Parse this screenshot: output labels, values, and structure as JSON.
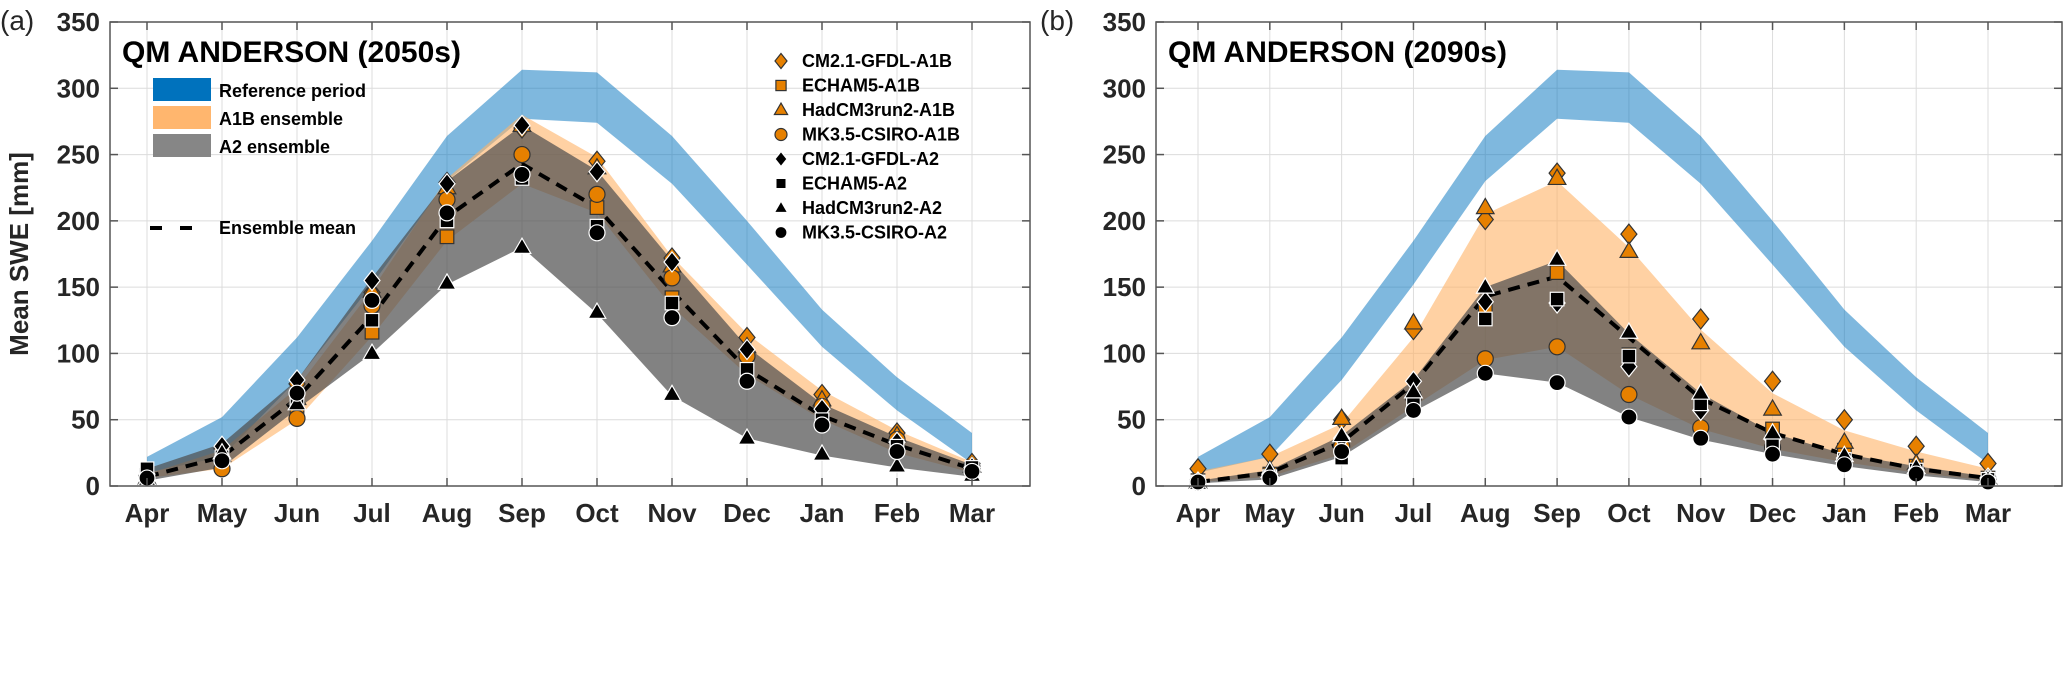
{
  "chart_data": [
    {
      "type": "area",
      "panel_label": "(a)",
      "title": "QM ANDERSON (2050s)",
      "xlabel": "",
      "ylabel": "Mean SWE [mm]",
      "ylim": [
        0,
        350
      ],
      "yticks": [
        0,
        50,
        100,
        150,
        200,
        250,
        300,
        350
      ],
      "categories": [
        "Apr",
        "May",
        "Jun",
        "Jul",
        "Aug",
        "Sep",
        "Oct",
        "Nov",
        "Dec",
        "Jan",
        "Feb",
        "Mar"
      ],
      "grid": true,
      "legend_fill_placement": "top-left",
      "legend_marker_placement": "top-right",
      "bands": [
        {
          "name": "Reference period",
          "color": "#0072BD",
          "lower": [
            10,
            22,
            80,
            152,
            230,
            277,
            274,
            228,
            167,
            105,
            57,
            17
          ],
          "upper": [
            22,
            52,
            112,
            185,
            264,
            314,
            312,
            264,
            200,
            133,
            82,
            40
          ]
        },
        {
          "name": "A1B ensemble",
          "color": "#FFB266",
          "lower": [
            6,
            13,
            50,
            113,
            185,
            228,
            206,
            135,
            84,
            50,
            25,
            10
          ],
          "upper": [
            9,
            27,
            74,
            148,
            232,
            280,
            248,
            173,
            115,
            72,
            42,
            18
          ]
        },
        {
          "name": "A2 ensemble",
          "color": "#808080",
          "lower": [
            4,
            14,
            58,
            100,
            152,
            180,
            130,
            68,
            36,
            23,
            14,
            7
          ],
          "upper": [
            13,
            32,
            80,
            157,
            230,
            272,
            238,
            170,
            105,
            62,
            37,
            16
          ]
        }
      ],
      "ensemble_mean": {
        "name": "Ensemble mean",
        "values": [
          7,
          22,
          66,
          128,
          203,
          243,
          210,
          147,
          88,
          53,
          31,
          13
        ]
      },
      "series": [
        {
          "name": "CM2.1-GFDL-A1B",
          "marker": "diamond",
          "color": "#E68000",
          "values": [
            8,
            28,
            77,
            146,
            229,
            270,
            245,
            172,
            112,
            69,
            40,
            17
          ]
        },
        {
          "name": "ECHAM5-A1B",
          "marker": "square",
          "color": "#E68000",
          "values": [
            8,
            20,
            60,
            116,
            188,
            232,
            210,
            142,
            85,
            56,
            32,
            13
          ]
        },
        {
          "name": "HadCM3run2-A1B",
          "marker": "triangle",
          "color": "#E68000",
          "values": [
            6,
            23,
            66,
            147,
            225,
            272,
            240,
            166,
            105,
            65,
            38,
            15
          ]
        },
        {
          "name": "MK3.5-CSIRO-A1B",
          "marker": "circle",
          "color": "#E68000",
          "values": [
            7,
            13,
            51,
            136,
            216,
            250,
            220,
            157,
            98,
            60,
            35,
            14
          ]
        },
        {
          "name": "CM2.1-GFDL-A2",
          "marker": "diamond",
          "color": "#000000",
          "values": [
            9,
            30,
            80,
            155,
            228,
            272,
            237,
            169,
            103,
            58,
            33,
            14
          ]
        },
        {
          "name": "ECHAM5-A2",
          "marker": "square",
          "color": "#000000",
          "values": [
            13,
            22,
            65,
            125,
            200,
            232,
            196,
            138,
            88,
            50,
            30,
            14
          ]
        },
        {
          "name": "HadCM3run2-A2",
          "marker": "triangle",
          "color": "#000000",
          "values": [
            5,
            25,
            62,
            100,
            153,
            180,
            131,
            69,
            36,
            24,
            15,
            8
          ]
        },
        {
          "name": "MK3.5-CSIRO-A2",
          "marker": "circle",
          "color": "#000000",
          "values": [
            6,
            19,
            70,
            140,
            206,
            235,
            191,
            127,
            79,
            46,
            26,
            11
          ]
        }
      ]
    },
    {
      "type": "area",
      "panel_label": "(b)",
      "title": "QM ANDERSON (2090s)",
      "xlabel": "",
      "ylabel": "",
      "ylim": [
        0,
        350
      ],
      "yticks": [
        0,
        50,
        100,
        150,
        200,
        250,
        300,
        350
      ],
      "categories": [
        "Apr",
        "May",
        "Jun",
        "Jul",
        "Aug",
        "Sep",
        "Oct",
        "Nov",
        "Dec",
        "Jan",
        "Feb",
        "Mar"
      ],
      "grid": true,
      "bands": [
        {
          "name": "Reference period",
          "color": "#0072BD",
          "lower": [
            10,
            22,
            80,
            152,
            230,
            277,
            274,
            228,
            167,
            105,
            57,
            17
          ],
          "upper": [
            22,
            52,
            112,
            185,
            264,
            314,
            312,
            264,
            200,
            133,
            82,
            40
          ]
        },
        {
          "name": "A1B ensemble",
          "color": "#FFB266",
          "lower": [
            3,
            7,
            24,
            60,
            95,
            105,
            69,
            43,
            28,
            18,
            10,
            4
          ],
          "upper": [
            11,
            22,
            47,
            112,
            205,
            230,
            180,
            118,
            70,
            42,
            26,
            13
          ]
        },
        {
          "name": "A2 ensemble",
          "color": "#808080",
          "lower": [
            2,
            5,
            22,
            56,
            85,
            78,
            52,
            35,
            24,
            15,
            8,
            3
          ],
          "upper": [
            4,
            12,
            38,
            80,
            150,
            170,
            115,
            70,
            40,
            24,
            15,
            7
          ]
        }
      ],
      "ensemble_mean": {
        "name": "Ensemble mean",
        "values": [
          3,
          10,
          33,
          77,
          143,
          158,
          112,
          66,
          40,
          24,
          13,
          6
        ]
      },
      "series": [
        {
          "name": "CM2.1-GFDL-A1B",
          "marker": "diamond",
          "color": "#E68000",
          "values": [
            13,
            24,
            50,
            118,
            201,
            236,
            190,
            126,
            79,
            50,
            30,
            17
          ]
        },
        {
          "name": "ECHAM5-A1B",
          "marker": "square",
          "color": "#E68000",
          "values": [
            4,
            9,
            28,
            66,
            133,
            161,
            99,
            63,
            43,
            27,
            15,
            6
          ]
        },
        {
          "name": "HadCM3run2-A1B",
          "marker": "triangle",
          "color": "#E68000",
          "values": [
            3,
            12,
            51,
            123,
            210,
            232,
            177,
            108,
            58,
            33,
            17,
            6
          ]
        },
        {
          "name": "MK3.5-CSIRO-A1B",
          "marker": "circle",
          "color": "#E68000",
          "values": [
            3,
            8,
            30,
            67,
            96,
            105,
            69,
            44,
            29,
            19,
            11,
            5
          ]
        },
        {
          "name": "CM2.1-GFDL-A2",
          "marker": "diamond",
          "color": "#000000",
          "values": [
            3,
            9,
            36,
            79,
            139,
            138,
            90,
            57,
            35,
            21,
            12,
            6
          ]
        },
        {
          "name": "ECHAM5-A2",
          "marker": "square",
          "color": "#000000",
          "values": [
            3,
            7,
            21,
            63,
            126,
            141,
            98,
            62,
            33,
            20,
            12,
            5
          ]
        },
        {
          "name": "HadCM3run2-A2",
          "marker": "triangle",
          "color": "#000000",
          "values": [
            2,
            11,
            38,
            71,
            150,
            171,
            116,
            70,
            40,
            23,
            14,
            5
          ]
        },
        {
          "name": "MK3.5-CSIRO-A2",
          "marker": "circle",
          "color": "#000000",
          "values": [
            3,
            6,
            26,
            57,
            85,
            78,
            52,
            36,
            24,
            16,
            9,
            3
          ]
        }
      ]
    }
  ],
  "legend": {
    "fill_items": [
      {
        "label": "Reference period",
        "color": "#0072BD"
      },
      {
        "label": "A1B ensemble",
        "color": "#FFB266"
      },
      {
        "label": "A2 ensemble",
        "color": "#808080"
      }
    ],
    "mean_label": "Ensemble mean",
    "marker_items": [
      {
        "label": "CM2.1-GFDL-A1B",
        "marker": "diamond",
        "color": "#E68000"
      },
      {
        "label": "ECHAM5-A1B",
        "marker": "square",
        "color": "#E68000"
      },
      {
        "label": "HadCM3run2-A1B",
        "marker": "triangle",
        "color": "#E68000"
      },
      {
        "label": "MK3.5-CSIRO-A1B",
        "marker": "circle",
        "color": "#E68000"
      },
      {
        "label": "CM2.1-GFDL-A2",
        "marker": "diamond",
        "color": "#000000"
      },
      {
        "label": "ECHAM5-A2",
        "marker": "square",
        "color": "#000000"
      },
      {
        "label": "HadCM3run2-A2",
        "marker": "triangle",
        "color": "#000000"
      },
      {
        "label": "MK3.5-CSIRO-A2",
        "marker": "circle",
        "color": "#000000"
      }
    ]
  }
}
